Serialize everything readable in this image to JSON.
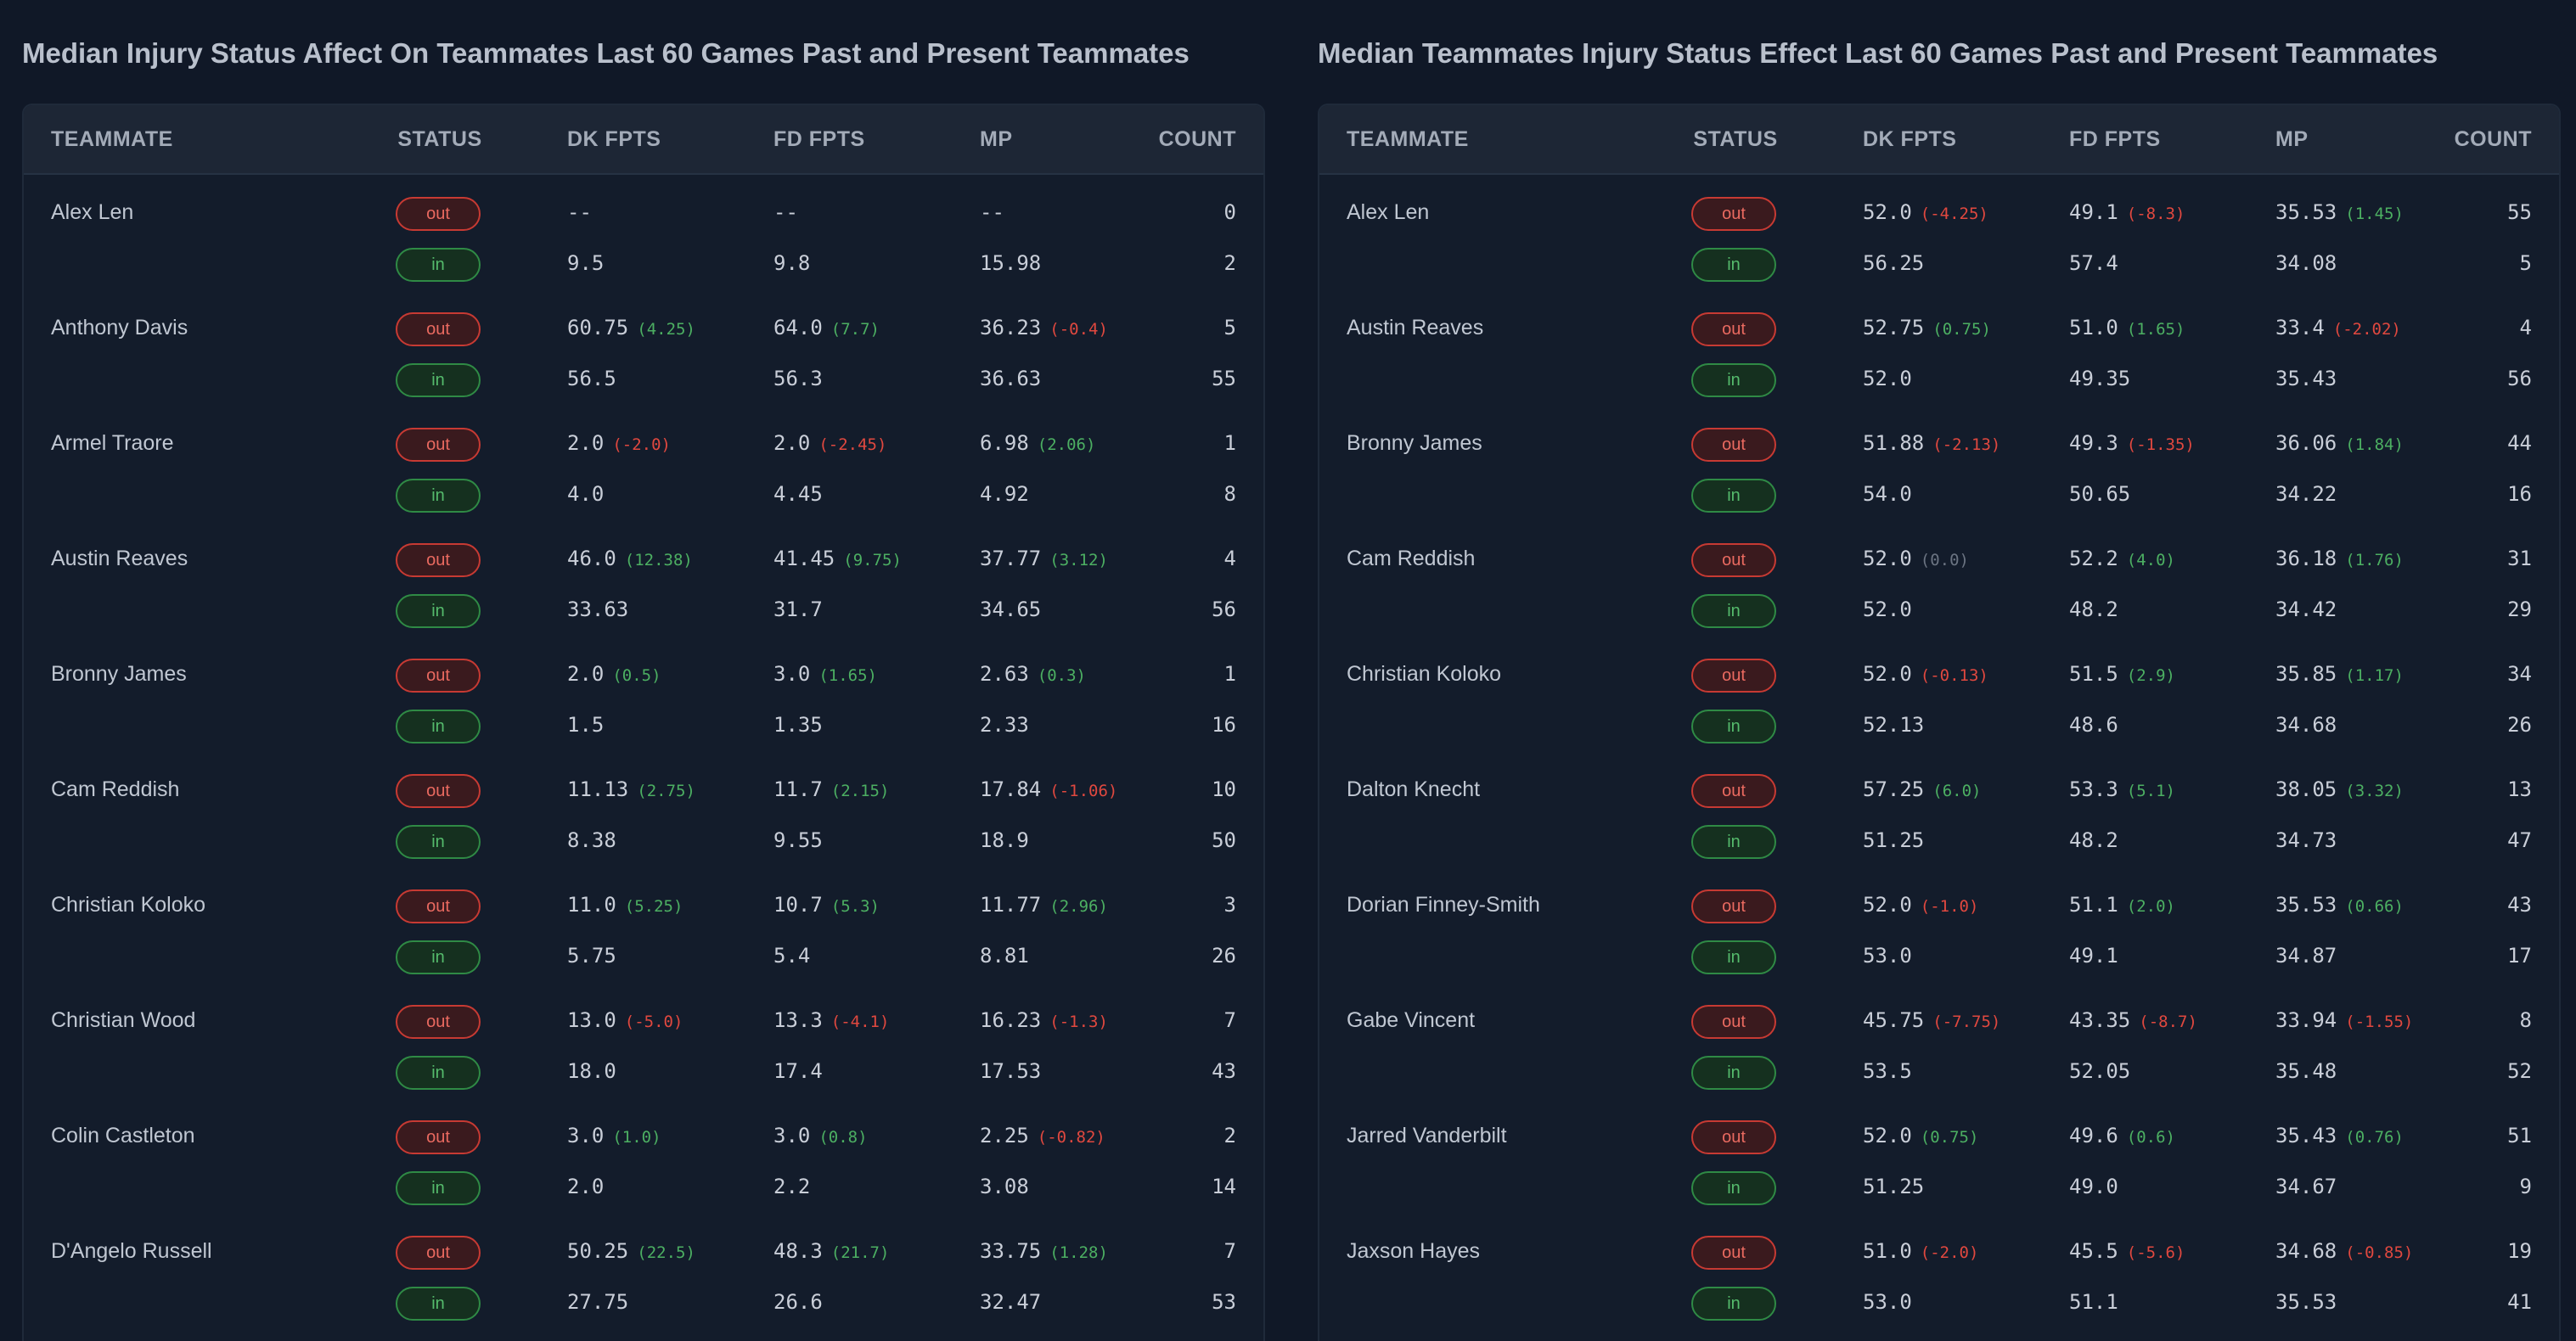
{
  "colors": {
    "background": "#101827",
    "positive": "#4caf62",
    "negative": "#e0483f",
    "out_badge": "#c73a33",
    "in_badge": "#2f8a45"
  },
  "panels": [
    {
      "title": "Median Injury Status Affect On Teammates Last 60 Games Past and Present Teammates",
      "headers": [
        "TEAMMATE",
        "STATUS",
        "DK FPTS",
        "FD FPTS",
        "MP",
        "COUNT"
      ],
      "rows": [
        {
          "name": "Alex Len",
          "out": {
            "status": "out",
            "dk": "--",
            "dk_diff": "",
            "fd": "--",
            "fd_diff": "",
            "mp": "--",
            "mp_diff": "",
            "count": "0"
          },
          "in": {
            "status": "in",
            "dk": "9.5",
            "fd": "9.8",
            "mp": "15.98",
            "count": "2"
          }
        },
        {
          "name": "Anthony Davis",
          "out": {
            "status": "out",
            "dk": "60.75",
            "dk_diff": "(4.25)",
            "fd": "64.0",
            "fd_diff": "(7.7)",
            "mp": "36.23",
            "mp_diff": "(-0.4)",
            "count": "5"
          },
          "in": {
            "status": "in",
            "dk": "56.5",
            "fd": "56.3",
            "mp": "36.63",
            "count": "55"
          }
        },
        {
          "name": "Armel Traore",
          "out": {
            "status": "out",
            "dk": "2.0",
            "dk_diff": "(-2.0)",
            "fd": "2.0",
            "fd_diff": "(-2.45)",
            "mp": "6.98",
            "mp_diff": "(2.06)",
            "count": "1"
          },
          "in": {
            "status": "in",
            "dk": "4.0",
            "fd": "4.45",
            "mp": "4.92",
            "count": "8"
          }
        },
        {
          "name": "Austin Reaves",
          "out": {
            "status": "out",
            "dk": "46.0",
            "dk_diff": "(12.38)",
            "fd": "41.45",
            "fd_diff": "(9.75)",
            "mp": "37.77",
            "mp_diff": "(3.12)",
            "count": "4"
          },
          "in": {
            "status": "in",
            "dk": "33.63",
            "fd": "31.7",
            "mp": "34.65",
            "count": "56"
          }
        },
        {
          "name": "Bronny James",
          "out": {
            "status": "out",
            "dk": "2.0",
            "dk_diff": "(0.5)",
            "fd": "3.0",
            "fd_diff": "(1.65)",
            "mp": "2.63",
            "mp_diff": "(0.3)",
            "count": "1"
          },
          "in": {
            "status": "in",
            "dk": "1.5",
            "fd": "1.35",
            "mp": "2.33",
            "count": "16"
          }
        },
        {
          "name": "Cam Reddish",
          "out": {
            "status": "out",
            "dk": "11.13",
            "dk_diff": "(2.75)",
            "fd": "11.7",
            "fd_diff": "(2.15)",
            "mp": "17.84",
            "mp_diff": "(-1.06)",
            "count": "10"
          },
          "in": {
            "status": "in",
            "dk": "8.38",
            "fd": "9.55",
            "mp": "18.9",
            "count": "50"
          }
        },
        {
          "name": "Christian Koloko",
          "out": {
            "status": "out",
            "dk": "11.0",
            "dk_diff": "(5.25)",
            "fd": "10.7",
            "fd_diff": "(5.3)",
            "mp": "11.77",
            "mp_diff": "(2.96)",
            "count": "3"
          },
          "in": {
            "status": "in",
            "dk": "5.75",
            "fd": "5.4",
            "mp": "8.81",
            "count": "26"
          }
        },
        {
          "name": "Christian Wood",
          "out": {
            "status": "out",
            "dk": "13.0",
            "dk_diff": "(-5.0)",
            "fd": "13.3",
            "fd_diff": "(-4.1)",
            "mp": "16.23",
            "mp_diff": "(-1.3)",
            "count": "7"
          },
          "in": {
            "status": "in",
            "dk": "18.0",
            "fd": "17.4",
            "mp": "17.53",
            "count": "43"
          }
        },
        {
          "name": "Colin Castleton",
          "out": {
            "status": "out",
            "dk": "3.0",
            "dk_diff": "(1.0)",
            "fd": "3.0",
            "fd_diff": "(0.8)",
            "mp": "2.25",
            "mp_diff": "(-0.82)",
            "count": "2"
          },
          "in": {
            "status": "in",
            "dk": "2.0",
            "fd": "2.2",
            "mp": "3.08",
            "count": "14"
          }
        },
        {
          "name": "D'Angelo Russell",
          "out": {
            "status": "out",
            "dk": "50.25",
            "dk_diff": "(22.5)",
            "fd": "48.3",
            "fd_diff": "(21.7)",
            "mp": "33.75",
            "mp_diff": "(1.28)",
            "count": "7"
          },
          "in": {
            "status": "in",
            "dk": "27.75",
            "fd": "26.6",
            "mp": "32.47",
            "count": "53"
          }
        }
      ]
    },
    {
      "title": "Median Teammates Injury Status Effect Last 60 Games Past and Present Teammates",
      "headers": [
        "TEAMMATE",
        "STATUS",
        "DK FPTS",
        "FD FPTS",
        "MP",
        "COUNT"
      ],
      "rows": [
        {
          "name": "Alex Len",
          "out": {
            "status": "out",
            "dk": "52.0",
            "dk_diff": "(-4.25)",
            "fd": "49.1",
            "fd_diff": "(-8.3)",
            "mp": "35.53",
            "mp_diff": "(1.45)",
            "count": "55"
          },
          "in": {
            "status": "in",
            "dk": "56.25",
            "fd": "57.4",
            "mp": "34.08",
            "count": "5"
          }
        },
        {
          "name": "Austin Reaves",
          "out": {
            "status": "out",
            "dk": "52.75",
            "dk_diff": "(0.75)",
            "fd": "51.0",
            "fd_diff": "(1.65)",
            "mp": "33.4",
            "mp_diff": "(-2.02)",
            "count": "4"
          },
          "in": {
            "status": "in",
            "dk": "52.0",
            "fd": "49.35",
            "mp": "35.43",
            "count": "56"
          }
        },
        {
          "name": "Bronny James",
          "out": {
            "status": "out",
            "dk": "51.88",
            "dk_diff": "(-2.13)",
            "fd": "49.3",
            "fd_diff": "(-1.35)",
            "mp": "36.06",
            "mp_diff": "(1.84)",
            "count": "44"
          },
          "in": {
            "status": "in",
            "dk": "54.0",
            "fd": "50.65",
            "mp": "34.22",
            "count": "16"
          }
        },
        {
          "name": "Cam Reddish",
          "out": {
            "status": "out",
            "dk": "52.0",
            "dk_diff": "(0.0)",
            "fd": "52.2",
            "fd_diff": "(4.0)",
            "mp": "36.18",
            "mp_diff": "(1.76)",
            "count": "31"
          },
          "in": {
            "status": "in",
            "dk": "52.0",
            "fd": "48.2",
            "mp": "34.42",
            "count": "29"
          }
        },
        {
          "name": "Christian Koloko",
          "out": {
            "status": "out",
            "dk": "52.0",
            "dk_diff": "(-0.13)",
            "fd": "51.5",
            "fd_diff": "(2.9)",
            "mp": "35.85",
            "mp_diff": "(1.17)",
            "count": "34"
          },
          "in": {
            "status": "in",
            "dk": "52.13",
            "fd": "48.6",
            "mp": "34.68",
            "count": "26"
          }
        },
        {
          "name": "Dalton Knecht",
          "out": {
            "status": "out",
            "dk": "57.25",
            "dk_diff": "(6.0)",
            "fd": "53.3",
            "fd_diff": "(5.1)",
            "mp": "38.05",
            "mp_diff": "(3.32)",
            "count": "13"
          },
          "in": {
            "status": "in",
            "dk": "51.25",
            "fd": "48.2",
            "mp": "34.73",
            "count": "47"
          }
        },
        {
          "name": "Dorian Finney-Smith",
          "out": {
            "status": "out",
            "dk": "52.0",
            "dk_diff": "(-1.0)",
            "fd": "51.1",
            "fd_diff": "(2.0)",
            "mp": "35.53",
            "mp_diff": "(0.66)",
            "count": "43"
          },
          "in": {
            "status": "in",
            "dk": "53.0",
            "fd": "49.1",
            "mp": "34.87",
            "count": "17"
          }
        },
        {
          "name": "Gabe Vincent",
          "out": {
            "status": "out",
            "dk": "45.75",
            "dk_diff": "(-7.75)",
            "fd": "43.35",
            "fd_diff": "(-8.7)",
            "mp": "33.94",
            "mp_diff": "(-1.55)",
            "count": "8"
          },
          "in": {
            "status": "in",
            "dk": "53.5",
            "fd": "52.05",
            "mp": "35.48",
            "count": "52"
          }
        },
        {
          "name": "Jarred Vanderbilt",
          "out": {
            "status": "out",
            "dk": "52.0",
            "dk_diff": "(0.75)",
            "fd": "49.6",
            "fd_diff": "(0.6)",
            "mp": "35.43",
            "mp_diff": "(0.76)",
            "count": "51"
          },
          "in": {
            "status": "in",
            "dk": "51.25",
            "fd": "49.0",
            "mp": "34.67",
            "count": "9"
          }
        },
        {
          "name": "Jaxson Hayes",
          "out": {
            "status": "out",
            "dk": "51.0",
            "dk_diff": "(-2.0)",
            "fd": "45.5",
            "fd_diff": "(-5.6)",
            "mp": "34.68",
            "mp_diff": "(-0.85)",
            "count": "19"
          },
          "in": {
            "status": "in",
            "dk": "53.0",
            "fd": "51.1",
            "mp": "35.53",
            "count": "41"
          }
        }
      ]
    }
  ]
}
